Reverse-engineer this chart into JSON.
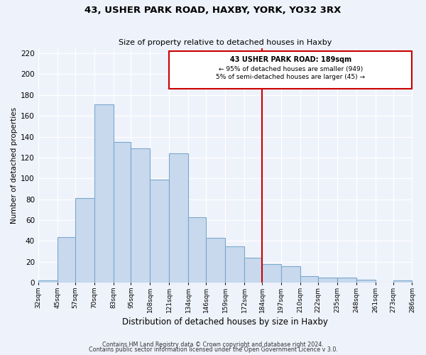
{
  "title": "43, USHER PARK ROAD, HAXBY, YORK, YO32 3RX",
  "subtitle": "Size of property relative to detached houses in Haxby",
  "xlabel": "Distribution of detached houses by size in Haxby",
  "ylabel": "Number of detached properties",
  "footer1": "Contains HM Land Registry data © Crown copyright and database right 2024.",
  "footer2": "Contains public sector information licensed under the Open Government Licence v 3.0.",
  "bar_labels": [
    "32sqm",
    "45sqm",
    "57sqm",
    "70sqm",
    "83sqm",
    "95sqm",
    "108sqm",
    "121sqm",
    "134sqm",
    "146sqm",
    "159sqm",
    "172sqm",
    "184sqm",
    "197sqm",
    "210sqm",
    "222sqm",
    "235sqm",
    "248sqm",
    "261sqm",
    "273sqm",
    "286sqm"
  ],
  "bar_values": [
    2,
    44,
    81,
    171,
    135,
    129,
    99,
    124,
    63,
    43,
    35,
    24,
    18,
    16,
    6,
    5,
    5,
    3,
    0,
    2
  ],
  "bar_color": "#c8d9ed",
  "bar_edge_color": "#7aa8cc",
  "property_line_color": "#cc0000",
  "annotation_title": "43 USHER PARK ROAD: 189sqm",
  "annotation_line1": "← 95% of detached houses are smaller (949)",
  "annotation_line2": "5% of semi-detached houses are larger (45) →",
  "annotation_box_color": "#ffffff",
  "annotation_box_edge": "#cc0000",
  "bg_color": "#eef2fb",
  "ylim": [
    0,
    225
  ],
  "yticks": [
    0,
    20,
    40,
    60,
    80,
    100,
    120,
    140,
    160,
    180,
    200,
    220
  ],
  "bin_edges": [
    32,
    45,
    57,
    70,
    83,
    95,
    108,
    121,
    134,
    146,
    159,
    172,
    184,
    197,
    210,
    222,
    235,
    248,
    261,
    273,
    286
  ],
  "property_bin_index": 12
}
